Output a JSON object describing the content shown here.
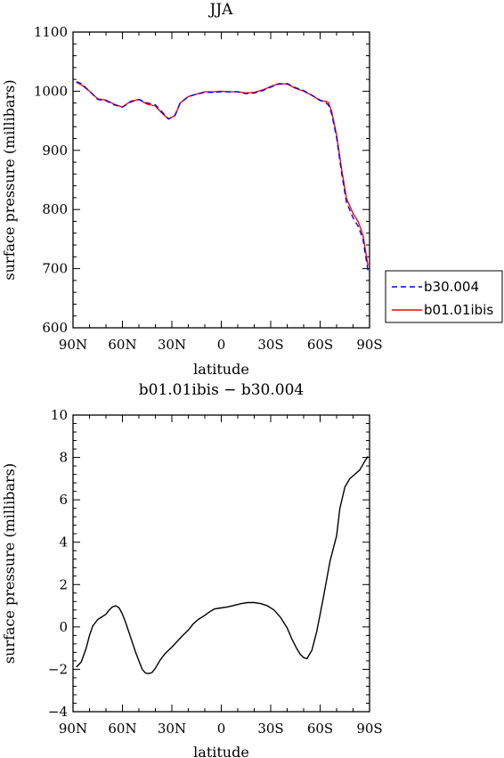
{
  "chart_data": [
    {
      "type": "line",
      "title": "JJA",
      "xlabel": "latitude",
      "ylabel": "surface pressure (millibars)",
      "xlim": [
        90,
        -90
      ],
      "ylim": [
        600,
        1100
      ],
      "xticks": [
        90,
        60,
        30,
        0,
        -30,
        -60,
        -90
      ],
      "xtick_labels": [
        "90N",
        "60N",
        "30N",
        "0",
        "30S",
        "60S",
        "90S"
      ],
      "yticks": [
        600,
        700,
        800,
        900,
        1000,
        1100
      ],
      "ytick_labels": [
        "600",
        "700",
        "800",
        "900",
        "1000",
        "1100"
      ],
      "grid": false,
      "legend": {
        "placement": "right-outside-bottom",
        "entries": [
          {
            "label": "b30.004",
            "color": "#0000ff",
            "style": "dashed"
          },
          {
            "label": "b01.01ibis",
            "color": "#ff0000",
            "style": "solid"
          }
        ]
      },
      "series": [
        {
          "name": "b30.004",
          "color": "#0000ff",
          "style": "dashed",
          "x": [
            88,
            85,
            80,
            75,
            70,
            65,
            60,
            55,
            50,
            45,
            40,
            36,
            32,
            28,
            25,
            20,
            15,
            10,
            5,
            0,
            -5,
            -10,
            -15,
            -20,
            -25,
            -30,
            -35,
            -40,
            -45,
            -50,
            -55,
            -60,
            -63,
            -65,
            -67,
            -70,
            -73,
            -76,
            -80,
            -83,
            -86,
            -89
          ],
          "y": [
            1016,
            1013,
            1000,
            986,
            984,
            977,
            973,
            982,
            986,
            980,
            977,
            965,
            953,
            960,
            980,
            991,
            995,
            998,
            998,
            999,
            999,
            999,
            996,
            997,
            1001,
            1007,
            1012,
            1013,
            1006,
            1001,
            993,
            985,
            981,
            977,
            962,
            922,
            862,
            812,
            786,
            772,
            750,
            697
          ]
        },
        {
          "name": "b01.01ibis",
          "color": "#ff0000",
          "style": "solid",
          "x": [
            88,
            85,
            80,
            75,
            70,
            65,
            60,
            55,
            50,
            45,
            40,
            36,
            32,
            28,
            25,
            20,
            15,
            10,
            5,
            0,
            -5,
            -10,
            -15,
            -20,
            -25,
            -30,
            -35,
            -40,
            -45,
            -50,
            -55,
            -60,
            -63,
            -65,
            -67,
            -70,
            -73,
            -76,
            -80,
            -83,
            -86,
            -89
          ],
          "y": [
            1015,
            1011,
            1000,
            987,
            985,
            978,
            973,
            983,
            986,
            978,
            975,
            963,
            953,
            959,
            980,
            991,
            995,
            999,
            999,
            1000,
            999,
            999,
            997,
            998,
            1002,
            1008,
            1013,
            1012,
            1005,
            1000,
            993,
            984,
            983,
            981,
            966,
            926,
            868,
            819,
            793,
            780,
            757,
            705
          ]
        }
      ]
    },
    {
      "type": "line",
      "title": "b01.01ibis − b30.004",
      "xlabel": "latitude",
      "ylabel": "surface pressure (millibars)",
      "xlim": [
        90,
        -90
      ],
      "ylim": [
        -4,
        10
      ],
      "xticks": [
        90,
        60,
        30,
        0,
        -30,
        -60,
        -90
      ],
      "xtick_labels": [
        "90N",
        "60N",
        "30N",
        "0",
        "30S",
        "60S",
        "90S"
      ],
      "yticks": [
        -4,
        -2,
        0,
        2,
        4,
        6,
        8,
        10
      ],
      "ytick_labels": [
        "−4",
        "−2",
        "0",
        "2",
        "4",
        "6",
        "8",
        "10"
      ],
      "grid": false,
      "series": [
        {
          "color": "#000000",
          "style": "solid",
          "x": [
            88,
            85,
            82,
            80,
            78,
            75,
            72,
            70,
            68,
            66,
            64,
            62,
            60,
            58,
            55,
            52,
            50,
            48,
            46,
            44,
            42,
            40,
            37,
            34,
            30,
            27,
            24,
            20,
            17,
            14,
            10,
            7,
            4,
            0,
            -4,
            -8,
            -12,
            -16,
            -20,
            -24,
            -28,
            -32,
            -36,
            -40,
            -43,
            -46,
            -48,
            -50,
            -52,
            -55,
            -58,
            -62,
            -66,
            -70,
            -72,
            -75,
            -78,
            -81,
            -84,
            -87,
            -89
          ],
          "y": [
            -1.9,
            -1.65,
            -1.0,
            -0.4,
            0.05,
            0.35,
            0.5,
            0.6,
            0.8,
            0.95,
            1.0,
            0.9,
            0.6,
            0.2,
            -0.5,
            -1.2,
            -1.6,
            -2.0,
            -2.18,
            -2.2,
            -2.15,
            -1.95,
            -1.55,
            -1.25,
            -0.95,
            -0.7,
            -0.45,
            -0.15,
            0.15,
            0.35,
            0.55,
            0.72,
            0.85,
            0.9,
            0.95,
            1.02,
            1.1,
            1.15,
            1.15,
            1.1,
            1.0,
            0.8,
            0.45,
            -0.05,
            -0.6,
            -1.05,
            -1.3,
            -1.45,
            -1.5,
            -1.1,
            -0.2,
            1.4,
            3.1,
            4.3,
            5.6,
            6.6,
            7.0,
            7.2,
            7.4,
            7.8,
            8.05
          ]
        }
      ]
    }
  ]
}
